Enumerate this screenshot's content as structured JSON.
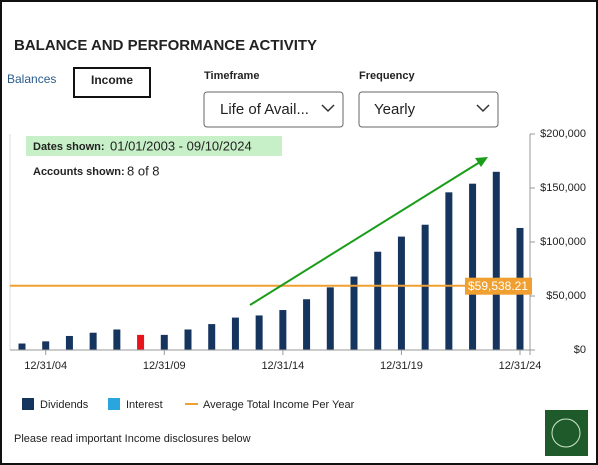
{
  "header": {
    "title": "BALANCE AND PERFORMANCE ACTIVITY"
  },
  "tabs": [
    "Balances",
    "Income"
  ],
  "filters": [
    {
      "label": "Timeframe",
      "value": "Life of Avail..."
    },
    {
      "label": "Frequency",
      "value": "Yearly"
    }
  ],
  "info": {
    "dates_label": "Dates shown:",
    "dates": "01/01/2003 - 09/10/2024",
    "accounts_label": "Accounts shown:",
    "accounts": "8 of 8"
  },
  "chart_data": {
    "type": "bar",
    "categories": [
      null,
      "12/31/04",
      null,
      null,
      null,
      null,
      "12/31/09",
      null,
      null,
      null,
      null,
      "12/31/14",
      null,
      null,
      null,
      null,
      "12/31/19",
      null,
      null,
      null,
      null,
      "12/31/24"
    ],
    "series": [
      {
        "name": "Dividends",
        "color": "#15355f",
        "values": [
          6000,
          8000,
          13000,
          16000,
          19000,
          14000,
          14000,
          19000,
          24000,
          30000,
          32000,
          37000,
          47000,
          58000,
          68000,
          91000,
          105000,
          116000,
          146000,
          154000,
          165000,
          113000
        ],
        "colors": [
          "#15355f",
          "#15355f",
          "#15355f",
          "#15355f",
          "#15355f",
          "#e8141c",
          "#15355f",
          "#15355f",
          "#15355f",
          "#15355f",
          "#15355f",
          "#15355f",
          "#15355f",
          "#15355f",
          "#15355f",
          "#15355f",
          "#15355f",
          "#15355f",
          "#15355f",
          "#15355f",
          "#15355f",
          "#15355f"
        ]
      }
    ],
    "average": {
      "value": 59538.21,
      "label": "$59,538.21",
      "color": "#f0a030"
    },
    "ylim": [
      0,
      200000
    ],
    "yticks": [
      {
        "value": 0,
        "label": "$0"
      },
      {
        "value": 50000,
        "label": "$50,000"
      },
      {
        "value": 100000,
        "label": "$100,000"
      },
      {
        "value": 150000,
        "label": "$150,000"
      },
      {
        "value": 200000,
        "label": "$200,000"
      }
    ],
    "legend": [
      {
        "name": "Dividends",
        "color": "#15355f"
      },
      {
        "name": "Interest",
        "color": "#2aa6df"
      },
      {
        "name": "Average Total Income Per Year",
        "color": "#f0a030"
      }
    ]
  },
  "footer": "Please read important Income disclosures below"
}
